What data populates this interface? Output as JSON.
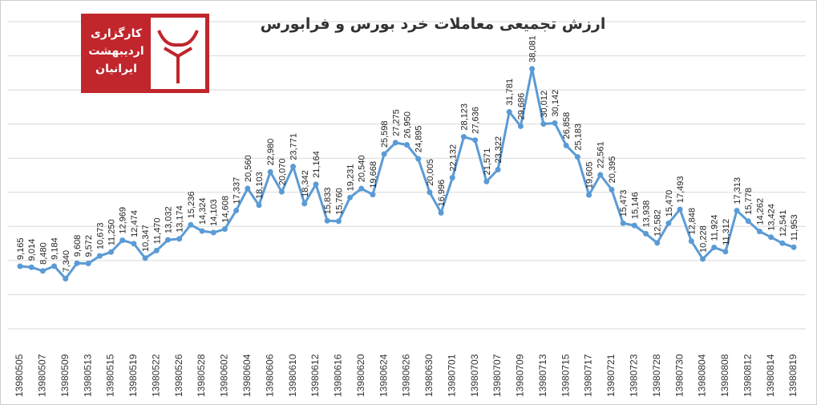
{
  "chart_data": {
    "type": "line",
    "title": "ارزش تجمیعی معاملات خرد بورس و فرابورس",
    "logo": [
      "کارگزاری",
      "اردیبهشت",
      "ایرانیان"
    ],
    "categories": [
      "13980505",
      null,
      "13980507",
      null,
      "13980509",
      null,
      "13980513",
      null,
      "13980515",
      null,
      "13980519",
      null,
      "13980522",
      null,
      "13980526",
      null,
      "13980528",
      null,
      "13980602",
      null,
      "13980604",
      null,
      "13980606",
      null,
      "13980610",
      null,
      "13980612",
      null,
      "13980616",
      null,
      "13980620",
      null,
      "13980624",
      null,
      "13980626",
      null,
      "13980630",
      null,
      "13980701",
      null,
      "13980703",
      null,
      "13980707",
      null,
      "13980709",
      null,
      "13980713",
      null,
      "13980715",
      null,
      "13980717",
      null,
      "13980721",
      null,
      "13980723",
      null,
      "13980728",
      null,
      "13980730",
      null,
      "13980804",
      null,
      "13980808",
      null,
      "13980812",
      null,
      "13980814",
      null,
      "13980819"
    ],
    "series": [
      {
        "color": "#5b9bd5",
        "values": [
          9165,
          9014,
          8480,
          9184,
          7340,
          9608,
          9572,
          10673,
          11250,
          12969,
          12474,
          10347,
          11470,
          13032,
          13174,
          15236,
          14324,
          14103,
          14608,
          17337,
          20560,
          18103,
          22980,
          20070,
          23771,
          18342,
          21164,
          15833,
          15760,
          19231,
          20540,
          19668,
          25598,
          27275,
          26950,
          24895,
          20005,
          16996,
          22132,
          28123,
          27636,
          21571,
          23322,
          31781,
          29686,
          38081,
          30012,
          30142,
          26858,
          25183,
          19605,
          22561,
          20395,
          15473,
          15146,
          13938,
          12582,
          15470,
          17493,
          12848,
          10228,
          11924,
          11312,
          17313,
          15778,
          14262,
          13424,
          12541,
          11953
        ],
        "value_labels": [
          "9,165",
          "9,014",
          "8,480",
          "9,184",
          "7,340",
          "9,608",
          "9,572",
          "10,673",
          "11,250",
          "12,969",
          "12,474",
          "10,347",
          "11,470",
          "13,032",
          "13,174",
          "15,236",
          "14,324",
          "14,103",
          "14,608",
          "17,337",
          "20,560",
          "18,103",
          "22,980",
          "20,070",
          "23,771",
          "18,342",
          "21,164",
          "15,833",
          "15,760",
          "19,231",
          "20,540",
          "19,668",
          "25,598",
          "27,275",
          "26,950",
          "24,895",
          "20,005",
          "16,996",
          "22,132",
          "28,123",
          "27,636",
          "21,571",
          "23,322",
          "31,781",
          "29,686",
          "38,081",
          "30,012",
          "30,142",
          "26,858",
          "25,183",
          "19,605",
          "22,561",
          "20,395",
          "15,473",
          "15,146",
          "13,938",
          "12,582",
          "15,470",
          "17,493",
          "12,848",
          "10,228",
          "11,924",
          "11,312",
          "17,313",
          "15,778",
          "14,262",
          "13,424",
          "12,541",
          "11,953"
        ]
      }
    ],
    "ylim": [
      0,
      45000
    ]
  }
}
